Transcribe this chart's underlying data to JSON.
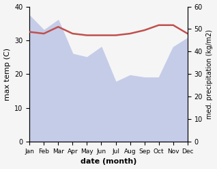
{
  "months": [
    1,
    2,
    3,
    4,
    5,
    6,
    7,
    8,
    9,
    10,
    11,
    12
  ],
  "month_labels": [
    "Jan",
    "Feb",
    "Mar",
    "Apr",
    "May",
    "Jun",
    "Jul",
    "Aug",
    "Sep",
    "Oct",
    "Nov",
    "Dec"
  ],
  "temp_max": [
    32.5,
    32.0,
    34.0,
    32.0,
    31.5,
    31.5,
    31.5,
    32.0,
    33.0,
    34.5,
    34.5,
    32.0
  ],
  "precip": [
    56.0,
    49.5,
    54.0,
    39.0,
    37.5,
    42.0,
    26.5,
    29.5,
    28.5,
    28.5,
    42.0,
    46.0
  ],
  "temp_color": "#c0504d",
  "precip_fill_color": "#c5cce8",
  "temp_ylim": [
    0,
    40
  ],
  "precip_ylim": [
    0,
    60
  ],
  "xlabel": "date (month)",
  "ylabel_left": "max temp (C)",
  "ylabel_right": "med. precipitation (kg/m2)",
  "temp_yticks": [
    0,
    10,
    20,
    30,
    40
  ],
  "precip_yticks": [
    0,
    10,
    20,
    30,
    40,
    50,
    60
  ],
  "bg_color": "#f5f5f5"
}
